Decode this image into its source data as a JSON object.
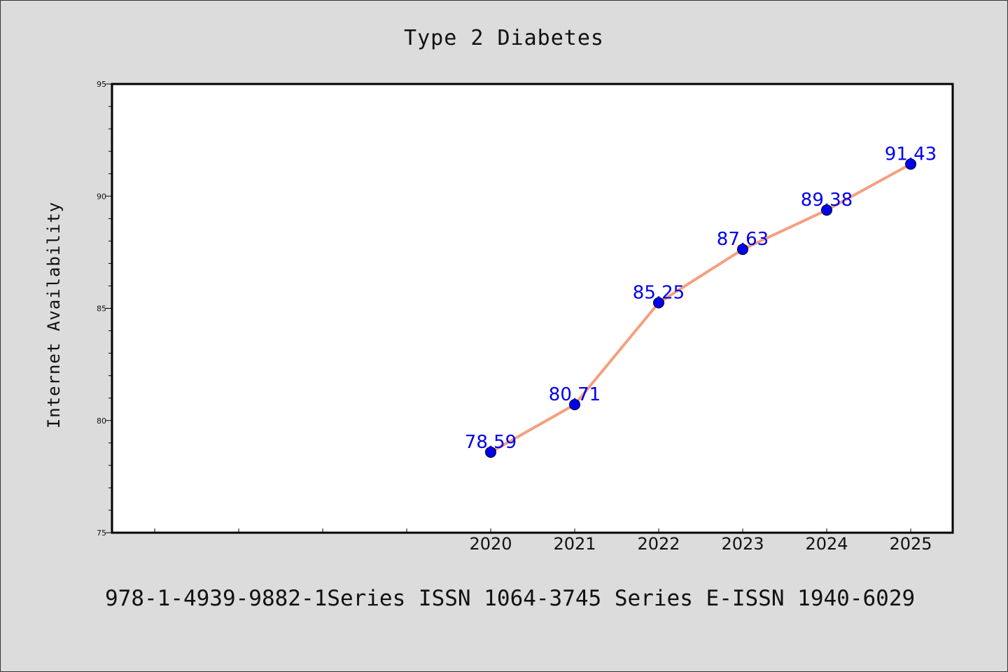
{
  "chart_data": {
    "type": "line",
    "title": "Type 2 Diabetes",
    "ylabel": "Internet Availability",
    "xlabel": "",
    "x": [
      "2020",
      "2021",
      "2022",
      "2023",
      "2024",
      "2025"
    ],
    "series": [
      {
        "values": [
          78.59,
          80.71,
          85.25,
          87.63,
          89.38,
          91.43
        ]
      }
    ],
    "data_labels": [
      "78.59",
      "80.71",
      "85.25",
      "87.63",
      "89.38",
      "91.43"
    ],
    "ylim": [
      75,
      95
    ],
    "yticks": [
      "75",
      "80",
      "85",
      "90",
      "95"
    ],
    "ytick_values": [
      75,
      80,
      85,
      90,
      95
    ],
    "grid": false,
    "colors": {
      "line": "#f4a07e",
      "marker": "#0000ee",
      "label": "#0000ee",
      "plot_bg": "#ffffff",
      "page_bg": "#dcdcdc"
    }
  },
  "footer": {
    "text": "978-1-4939-9882-1Series ISSN 1064-3745 Series E-ISSN 1940-6029"
  }
}
